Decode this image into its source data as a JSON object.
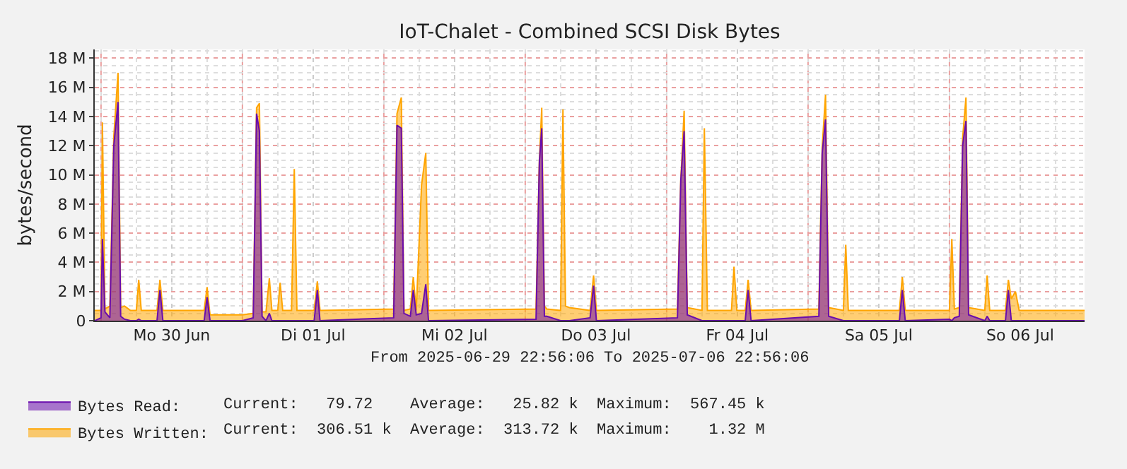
{
  "chart_data": {
    "type": "area",
    "title": "IoT-Chalet - Combined SCSI Disk Bytes",
    "ylabel": "bytes/second",
    "annotations": [
      "From 2025-06-29 22:56:06 To 2025-07-06 22:56:06",
      "Current:   79.72    Average:   25.82 k  Maximum:  567.45 k",
      "Current:  306.51 k  Average:  313.72 k  Maximum:    1.32 M"
    ],
    "x": [
      "2025-06-29T22:56",
      "2025-06-30T00:00",
      "2025-06-30T00:14",
      "2025-06-30T00:40",
      "2025-06-30T01:30",
      "2025-06-30T02:10",
      "2025-06-30T02:53",
      "2025-06-30T03:20",
      "2025-06-30T04:00",
      "2025-06-30T05:00",
      "2025-06-30T06:00",
      "2025-06-30T06:24",
      "2025-06-30T06:50",
      "2025-06-30T09:30",
      "2025-06-30T10:00",
      "2025-06-30T10:30",
      "2025-06-30T17:30",
      "2025-06-30T18:00",
      "2025-06-30T18:30",
      "2025-07-01T00:00",
      "2025-07-01T01:50",
      "2025-07-01T02:24",
      "2025-07-01T02:53",
      "2025-07-01T03:20",
      "2025-07-01T04:00",
      "2025-07-01T04:34",
      "2025-07-01T05:00",
      "2025-07-01T06:00",
      "2025-07-01T06:24",
      "2025-07-01T06:50",
      "2025-07-01T08:20",
      "2025-07-01T08:48",
      "2025-07-01T09:15",
      "2025-07-01T12:10",
      "2025-07-01T12:43",
      "2025-07-01T13:10",
      "2025-07-02T01:40",
      "2025-07-02T02:14",
      "2025-07-02T02:58",
      "2025-07-02T03:25",
      "2025-07-02T04:30",
      "2025-07-02T05:00",
      "2025-07-02T05:30",
      "2025-07-02T06:24",
      "2025-07-02T07:07",
      "2025-07-02T07:35",
      "2025-07-03T01:50",
      "2025-07-03T02:24",
      "2025-07-03T02:48",
      "2025-07-03T03:15",
      "2025-07-03T03:40",
      "2025-07-03T06:00",
      "2025-07-03T06:24",
      "2025-07-03T06:50",
      "2025-07-03T07:30",
      "2025-07-03T11:00",
      "2025-07-03T11:36",
      "2025-07-03T12:05",
      "2025-07-04T01:50",
      "2025-07-04T02:24",
      "2025-07-04T02:58",
      "2025-07-04T03:30",
      "2025-07-04T06:00",
      "2025-07-04T06:24",
      "2025-07-04T06:55",
      "2025-07-04T11:00",
      "2025-07-04T11:26",
      "2025-07-04T11:55",
      "2025-07-04T13:20",
      "2025-07-04T13:50",
      "2025-07-04T14:20",
      "2025-07-05T01:50",
      "2025-07-05T02:24",
      "2025-07-05T02:58",
      "2025-07-05T03:30",
      "2025-07-05T06:00",
      "2025-07-05T06:24",
      "2025-07-05T06:50",
      "2025-07-05T15:30",
      "2025-07-05T16:00",
      "2025-07-05T16:30",
      "2025-07-06T00:00",
      "2025-07-06T00:24",
      "2025-07-06T00:50",
      "2025-07-06T01:40",
      "2025-07-06T02:14",
      "2025-07-06T02:48",
      "2025-07-06T03:15",
      "2025-07-06T06:00",
      "2025-07-06T06:24",
      "2025-07-06T06:50",
      "2025-07-06T09:30",
      "2025-07-06T10:00",
      "2025-07-06T10:30",
      "2025-07-06T11:12",
      "2025-07-06T11:50",
      "2025-07-06T22:56"
    ],
    "series": [
      {
        "name": "Bytes Written:",
        "color": "#ffa500",
        "values": [
          0.7,
          0.7,
          13.6,
          0.8,
          1.0,
          12.6,
          17.0,
          0.9,
          1.0,
          0.7,
          0.7,
          2.8,
          0.7,
          0.7,
          2.8,
          0.7,
          0.7,
          2.3,
          0.4,
          0.4,
          0.5,
          14.6,
          14.9,
          0.6,
          0.6,
          2.9,
          0.7,
          0.7,
          2.6,
          0.7,
          0.7,
          10.4,
          0.7,
          0.7,
          2.7,
          0.7,
          0.8,
          14.2,
          15.3,
          0.7,
          0.8,
          3.0,
          0.7,
          9.3,
          11.5,
          0.7,
          0.8,
          11.0,
          14.6,
          1.0,
          0.8,
          0.7,
          14.5,
          1.0,
          0.9,
          0.7,
          3.1,
          0.7,
          0.8,
          9.6,
          14.4,
          0.9,
          0.7,
          13.2,
          0.7,
          0.7,
          3.7,
          0.7,
          0.7,
          2.8,
          0.7,
          0.8,
          11.9,
          15.5,
          0.9,
          0.7,
          5.2,
          0.7,
          0.7,
          3.0,
          0.7,
          0.7,
          5.6,
          0.8,
          0.9,
          12.5,
          15.3,
          0.9,
          0.7,
          3.1,
          0.7,
          0.7,
          2.8,
          1.5,
          2.0,
          0.7,
          0.7
        ]
      },
      {
        "name": "Bytes Read:",
        "color": "#6a0dad",
        "values": [
          0,
          0.2,
          5.6,
          0.6,
          0.2,
          12.0,
          15.0,
          0.3,
          0.1,
          0,
          0,
          0.1,
          0,
          0,
          2.1,
          0,
          0,
          1.6,
          0,
          0,
          0.2,
          14.2,
          13.0,
          0.3,
          0,
          0.5,
          0,
          0,
          0,
          0,
          0,
          0,
          0,
          0,
          2.1,
          0,
          0.2,
          13.4,
          13.2,
          0.5,
          0.3,
          2.1,
          0.4,
          0.5,
          2.5,
          0,
          0.1,
          10.9,
          13.2,
          0.3,
          0.3,
          0,
          0,
          0,
          0,
          0.2,
          2.4,
          0,
          0.2,
          9.6,
          13.0,
          0.4,
          0,
          0,
          0,
          0,
          0,
          0,
          0,
          2.1,
          0,
          0.3,
          11.5,
          13.8,
          0.3,
          0,
          0,
          0,
          0,
          2.1,
          0,
          0.1,
          0,
          0.2,
          0.3,
          12.0,
          13.7,
          0.4,
          0,
          0.3,
          0,
          0,
          2.1,
          0,
          0,
          0,
          0
        ]
      }
    ],
    "xlim": [
      "2025-06-29T22:56",
      "2025-07-06T22:56"
    ],
    "xticks": [
      {
        "value": "2025-06-30T12:00",
        "label": "Mo 30 Jun"
      },
      {
        "value": "2025-07-01T12:00",
        "label": "Di 01 Jul"
      },
      {
        "value": "2025-07-02T12:00",
        "label": "Mi 02 Jul"
      },
      {
        "value": "2025-07-03T12:00",
        "label": "Do 03 Jul"
      },
      {
        "value": "2025-07-04T12:00",
        "label": "Fr 04 Jul"
      },
      {
        "value": "2025-07-05T12:00",
        "label": "Sa 05 Jul"
      },
      {
        "value": "2025-07-06T12:00",
        "label": "So 06 Jul"
      }
    ],
    "ylim": [
      0,
      18.6
    ],
    "yticks": [
      {
        "value": 0,
        "label": "0"
      },
      {
        "value": 2,
        "label": "2 M"
      },
      {
        "value": 4,
        "label": "4 M"
      },
      {
        "value": 6,
        "label": "6 M"
      },
      {
        "value": 8,
        "label": "8 M"
      },
      {
        "value": 10,
        "label": "10 M"
      },
      {
        "value": 12,
        "label": "12 M"
      },
      {
        "value": 14,
        "label": "14 M"
      },
      {
        "value": 16,
        "label": "16 M"
      },
      {
        "value": 18,
        "label": "18 M"
      }
    ],
    "grid": true,
    "legend": "bottom left"
  }
}
